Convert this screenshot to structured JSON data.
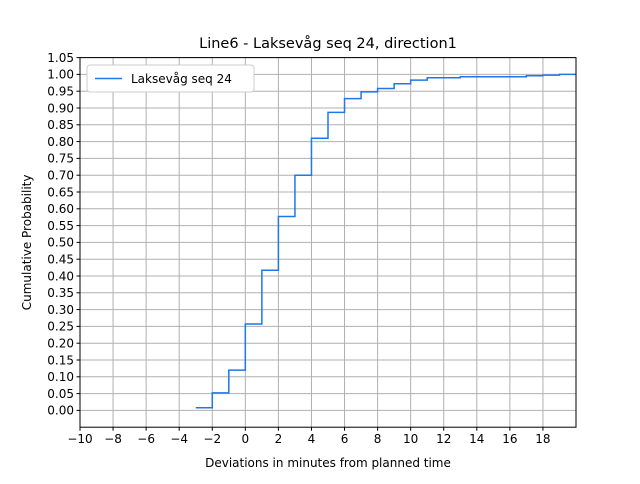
{
  "chart_data": {
    "type": "line",
    "title": "Line6 - Laksevåg seq 24, direction1",
    "xlabel": "Deviations in minutes from planned time",
    "ylabel": "Cumulative Probability",
    "xlim": [
      -10,
      20
    ],
    "ylim": [
      -0.05,
      1.05
    ],
    "xticks": [
      -10,
      -8,
      -6,
      -4,
      -2,
      0,
      2,
      4,
      6,
      8,
      10,
      12,
      14,
      16,
      18
    ],
    "xtick_labels": [
      "−10",
      "−8",
      "−6",
      "−4",
      "−2",
      "0",
      "2",
      "4",
      "6",
      "8",
      "10",
      "12",
      "14",
      "16",
      "18"
    ],
    "yticks": [
      0.0,
      0.05,
      0.1,
      0.15,
      0.2,
      0.25,
      0.3,
      0.35,
      0.4,
      0.45,
      0.5,
      0.55,
      0.6,
      0.65,
      0.7,
      0.75,
      0.8,
      0.85,
      0.9,
      0.95,
      1.0,
      1.05
    ],
    "ytick_labels": [
      "0.00",
      "0.05",
      "0.10",
      "0.15",
      "0.20",
      "0.25",
      "0.30",
      "0.35",
      "0.40",
      "0.45",
      "0.50",
      "0.55",
      "0.60",
      "0.65",
      "0.70",
      "0.75",
      "0.80",
      "0.85",
      "0.90",
      "0.95",
      "1.00",
      "1.05"
    ],
    "grid": true,
    "legend_position": "upper-left",
    "step": "post",
    "series": [
      {
        "name": "Laksevåg seq 24",
        "color": "#1f77e8",
        "x": [
          -3,
          -2,
          -1,
          0,
          1,
          2,
          3,
          4,
          5,
          6,
          7,
          8,
          9,
          10,
          11,
          12,
          13,
          14,
          15,
          16,
          17,
          18,
          19,
          20
        ],
        "y": [
          0.008,
          0.052,
          0.12,
          0.257,
          0.417,
          0.577,
          0.7,
          0.81,
          0.887,
          0.928,
          0.948,
          0.958,
          0.972,
          0.983,
          0.99,
          0.99,
          0.993,
          0.993,
          0.993,
          0.993,
          0.996,
          0.998,
          1.0,
          1.0
        ]
      }
    ]
  }
}
